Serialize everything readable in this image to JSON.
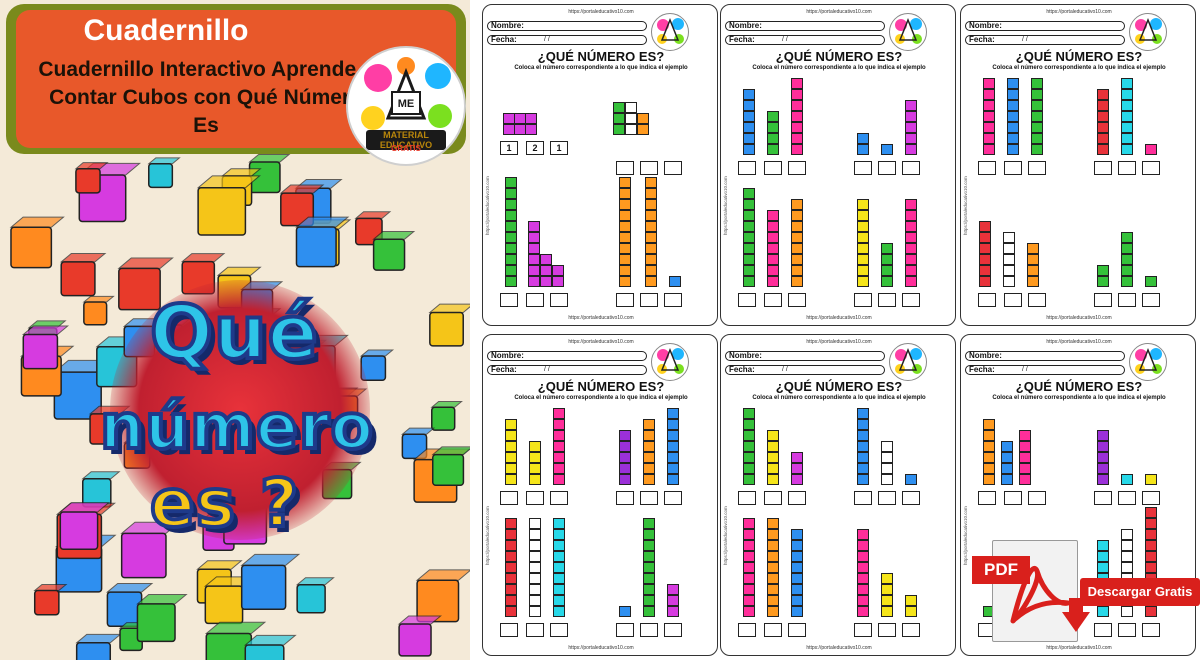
{
  "cover": {
    "title": "Cuadernillo",
    "subtitle": "Cuadernillo Interactivo Aprende a Contar Cubos con Qué Número Es",
    "big_title_line1": "Qué",
    "big_title_line2": "número",
    "big_title_line3": "es ?",
    "logo_text": "MATERIAL EDUCATIVO",
    "logo_sub": "GRATIS",
    "logo_initials": "ME"
  },
  "worksheet": {
    "url": "https://portaleducativo10.com",
    "name_label": "Nombre:",
    "date_label": "Fecha:",
    "title": "¿QUÉ NÚMERO ES?",
    "instruction": "Coloca el número correspondiente a lo que indica el ejemplo",
    "example_numbers": [
      "1",
      "2",
      "1"
    ]
  },
  "download": {
    "pdf_label": "PDF",
    "button_label": "Descargar Gratis"
  },
  "colors": {
    "cover_title_bg": "#e8582a",
    "cover_border": "#7a8a1c",
    "pdf_red": "#d9201c"
  }
}
